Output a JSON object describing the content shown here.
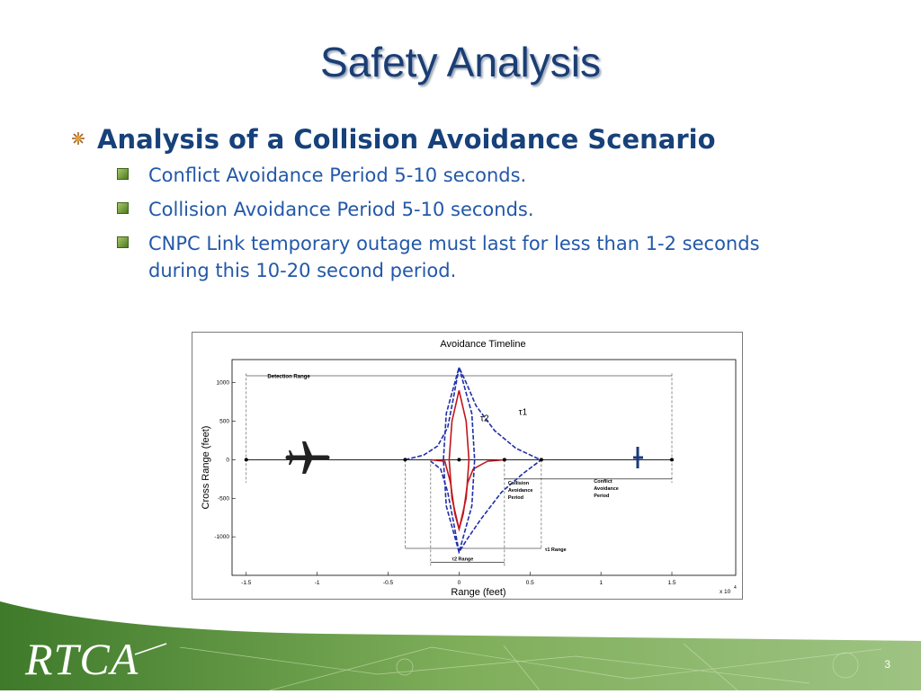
{
  "slide": {
    "title": "Safety Analysis",
    "page_number": "3",
    "logo_text": "RTCA"
  },
  "bullets": {
    "main": "Analysis of a Collision Avoidance Scenario",
    "items": [
      "Conflict Avoidance Period 5-10 seconds.",
      "Collision Avoidance Period 5-10 seconds.",
      "CNPC Link temporary outage must last for less than 1-2 seconds during this 10-20 second period."
    ]
  },
  "colors": {
    "title": "#1a3e74",
    "main_bullet": "#17417a",
    "sub_bullet_text": "#2358a8",
    "sub_bullet_marker": "#5a8a2a",
    "footer_green": "#4f8a3a",
    "series_blue": "#1f2fa8",
    "series_red": "#c0161c"
  },
  "chart_data": {
    "type": "line",
    "title": "Avoidance Timeline",
    "xlabel": "Range (feet)",
    "ylabel": "Cross Range (feet)",
    "x_multiplier": "x 10",
    "x_multiplier_exp": "4",
    "xlim": [
      -1.6,
      1.95
    ],
    "ylim": [
      -1500,
      1300
    ],
    "xticks": [
      -1.5,
      -1,
      -0.5,
      0,
      0.5,
      1,
      1.5
    ],
    "xtick_labels": [
      "-1.5",
      "-1",
      "-0.5",
      "0",
      "0.5",
      "1",
      "1.5"
    ],
    "yticks": [
      1000,
      500,
      0,
      -500,
      -1000
    ],
    "ytick_labels": [
      "1000",
      "500",
      "0",
      "-500",
      "-1000"
    ],
    "grid": false,
    "annotations": {
      "detection_range": "Detection Range",
      "tau2": "τ2",
      "tau1": "τ1",
      "collision_period": [
        "Collision",
        "Avoidance",
        "Period"
      ],
      "conflict_period": [
        "Conflict",
        "Avoidance",
        "Period"
      ],
      "tau1_range": "τ1 Range",
      "tau2_range": "τ2 Range"
    },
    "series": [
      {
        "color": "#1f2fa8",
        "style": "dashed",
        "points": [
          [
            -0.38,
            0
          ],
          [
            -0.25,
            60
          ],
          [
            -0.15,
            180
          ],
          [
            -0.08,
            420
          ],
          [
            -0.04,
            800
          ],
          [
            0,
            1200
          ],
          [
            0.05,
            1000
          ],
          [
            0.12,
            700
          ],
          [
            0.25,
            380
          ],
          [
            0.4,
            150
          ],
          [
            0.55,
            20
          ],
          [
            0.58,
            0
          ],
          [
            0.45,
            -180
          ],
          [
            0.3,
            -420
          ],
          [
            0.15,
            -780
          ],
          [
            0.05,
            -1050
          ],
          [
            0,
            -1200
          ],
          [
            -0.04,
            -800
          ],
          [
            -0.08,
            -420
          ],
          [
            -0.13,
            -120
          ],
          [
            -0.2,
            -20
          ]
        ]
      },
      {
        "color": "#c0161c",
        "style": "solid",
        "points": [
          [
            -0.2,
            0
          ],
          [
            -0.1,
            -20
          ],
          [
            -0.06,
            -300
          ],
          [
            -0.03,
            -700
          ],
          [
            0,
            -900
          ],
          [
            0.03,
            -700
          ],
          [
            0.06,
            -300
          ],
          [
            0.1,
            -120
          ],
          [
            0.2,
            -20
          ],
          [
            0.32,
            0
          ]
        ]
      },
      {
        "color": "#c0161c",
        "style": "solid",
        "points": [
          [
            0,
            -900
          ],
          [
            -0.05,
            -500
          ],
          [
            -0.07,
            0
          ],
          [
            -0.05,
            500
          ],
          [
            0,
            900
          ],
          [
            0.05,
            500
          ],
          [
            0.07,
            0
          ],
          [
            0.05,
            -500
          ],
          [
            0,
            -900
          ]
        ]
      },
      {
        "color": "#1f2fa8",
        "style": "dashed",
        "points": [
          [
            0,
            -1200
          ],
          [
            -0.09,
            -600
          ],
          [
            -0.11,
            0
          ],
          [
            -0.09,
            600
          ],
          [
            0,
            1200
          ],
          [
            0.09,
            600
          ],
          [
            0.11,
            0
          ],
          [
            0.09,
            -600
          ],
          [
            0,
            -1200
          ]
        ]
      }
    ],
    "markers": [
      [
        -1.5,
        0
      ],
      [
        -0.38,
        0
      ],
      [
        0,
        0
      ],
      [
        0.32,
        0
      ],
      [
        0.58,
        0
      ],
      [
        1.5,
        0
      ]
    ]
  }
}
